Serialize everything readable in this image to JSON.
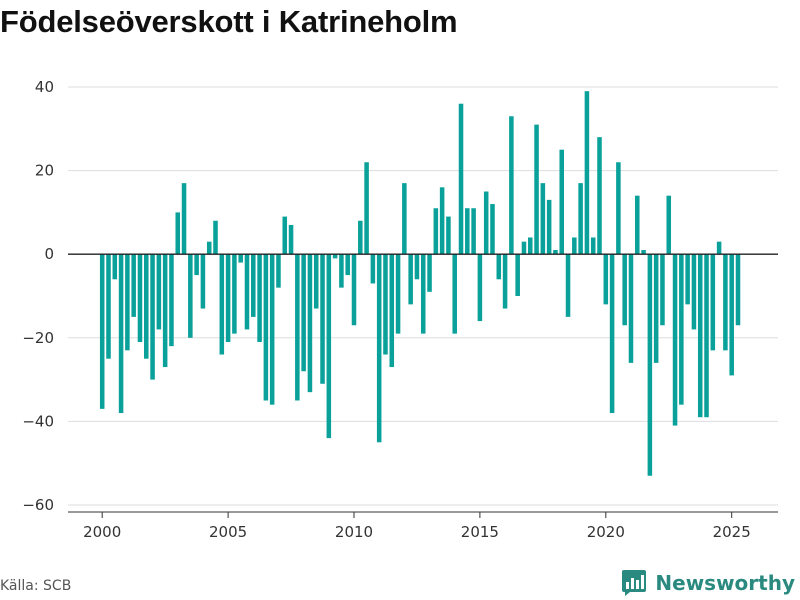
{
  "title": "Födelseöverskott i Katrineholm",
  "source": "Källa: SCB",
  "brand": {
    "name": "Newsworthy",
    "icon": "bar-chart-logo-icon"
  },
  "colors": {
    "bar": "#0aa19a",
    "zero_line": "#222222",
    "grid": "#dddddd",
    "brand": "#2a8a80"
  },
  "chart_data": {
    "type": "bar",
    "frequency": "quarterly",
    "x_tick_labels": [
      "2000",
      "2005",
      "2010",
      "2015",
      "2020",
      "2025"
    ],
    "y_tick_labels": [
      "40",
      "20",
      "0",
      "−20",
      "−40",
      "−60"
    ],
    "ylim": [
      -60,
      40
    ],
    "grid": true,
    "series": [
      {
        "values": [
          -37,
          -25,
          -6,
          -38,
          -23,
          -15,
          -21,
          -25,
          -30,
          -18,
          -27,
          -22,
          10,
          17,
          -20,
          -5,
          -13,
          3,
          8,
          -24,
          -21,
          -19,
          -2,
          -18,
          -15,
          -21,
          -35,
          -36,
          -8,
          9,
          7,
          -35,
          -28,
          -33,
          -13,
          -31,
          -44,
          -1,
          -8,
          -5,
          -17,
          8,
          22,
          -7,
          -45,
          -24,
          -27,
          -19,
          17,
          -12,
          -6,
          -19,
          -9,
          11,
          16,
          9,
          -19,
          36,
          11,
          11,
          -16,
          15,
          12,
          -6,
          -13,
          33,
          -10,
          3,
          4,
          31,
          17,
          13,
          1,
          25,
          -15,
          4,
          17,
          39,
          4,
          28,
          -12,
          -38,
          22,
          -17,
          -26,
          14,
          1,
          -53,
          -26,
          -17,
          14,
          -41,
          -36,
          -12,
          -18,
          -39,
          -39,
          -23,
          3,
          -23,
          -29,
          -17
        ]
      }
    ]
  }
}
